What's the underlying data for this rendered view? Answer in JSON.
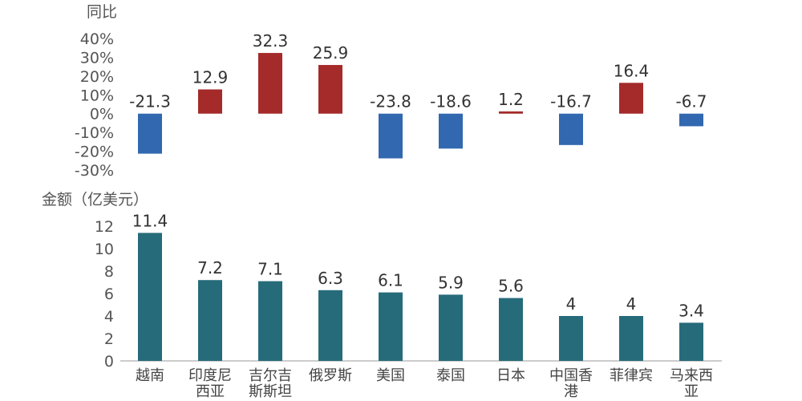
{
  "chart_data": [
    {
      "type": "bar",
      "title": "",
      "ylabel": "同比",
      "categories": [
        "越南",
        "印度尼西亚",
        "吉尔吉斯斯坦",
        "俄罗斯",
        "美国",
        "泰国",
        "日本",
        "中国香港",
        "菲律宾",
        "马来西亚"
      ],
      "values": [
        -21.3,
        12.9,
        32.3,
        25.9,
        -23.8,
        -18.6,
        1.2,
        -16.7,
        16.4,
        -6.7
      ],
      "data_labels": [
        "-21.3",
        "12.9",
        "32.3",
        "25.9",
        "-23.8",
        "-18.6",
        "1.2",
        "-16.7",
        "16.4",
        "-6.7"
      ],
      "ylim": [
        -30,
        40
      ],
      "yticks": [
        40,
        30,
        20,
        10,
        0,
        -10,
        -20,
        -30
      ],
      "ytick_labels": [
        "40%",
        "30%",
        "20%",
        "10%",
        "0%",
        "-10%",
        "-20%",
        "-30%"
      ],
      "colors": {
        "positive": "#a52a2a",
        "negative": "#3168b0"
      }
    },
    {
      "type": "bar",
      "title": "",
      "ylabel": "金额（亿美元）",
      "categories": [
        "越南",
        "印度尼西亚",
        "吉尔吉斯斯坦",
        "俄罗斯",
        "美国",
        "泰国",
        "日本",
        "中国香港",
        "菲律宾",
        "马来西亚"
      ],
      "category_lines": [
        [
          "越南"
        ],
        [
          "印度尼",
          "西亚"
        ],
        [
          "吉尔吉",
          "斯斯坦"
        ],
        [
          "俄罗斯"
        ],
        [
          "美国"
        ],
        [
          "泰国"
        ],
        [
          "日本"
        ],
        [
          "中国香",
          "港"
        ],
        [
          "菲律宾"
        ],
        [
          "马来西",
          "亚"
        ]
      ],
      "values": [
        11.4,
        7.2,
        7.1,
        6.3,
        6.1,
        5.9,
        5.6,
        4,
        4,
        3.4
      ],
      "data_labels": [
        "11.4",
        "7.2",
        "7.1",
        "6.3",
        "6.1",
        "5.9",
        "5.6",
        "4",
        "4",
        "3.4"
      ],
      "ylim": [
        0,
        13
      ],
      "yticks": [
        12,
        10,
        8,
        6,
        4,
        2,
        0
      ],
      "ytick_labels": [
        "12",
        "10",
        "8",
        "6",
        "4",
        "2",
        "0"
      ],
      "colors": {
        "bar": "#266b7a"
      }
    }
  ]
}
